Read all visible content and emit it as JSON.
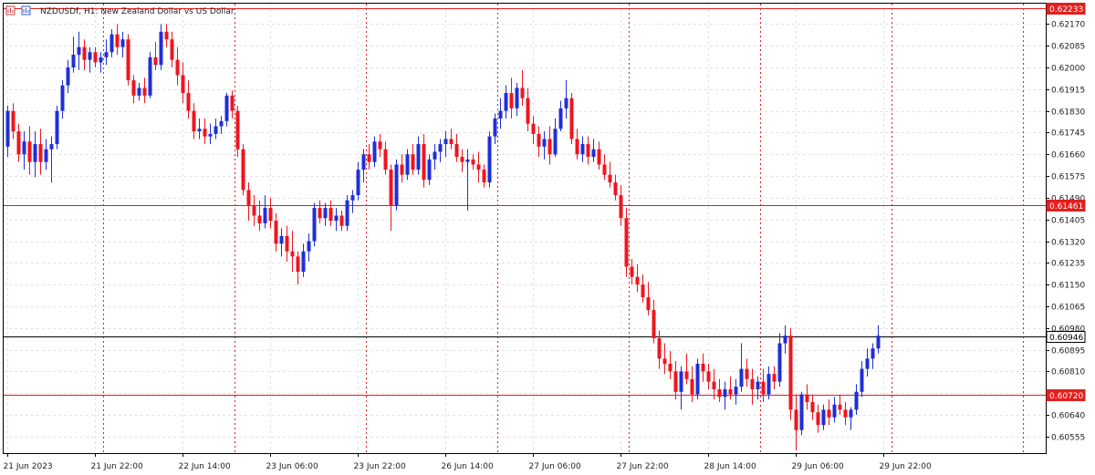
{
  "chart_data": {
    "type": "candlestick",
    "title": "NZDUSDf, H1:  New Zealand Dollar vs US Dollar",
    "ylim": [
      0.6049,
      0.6225
    ],
    "grid": true,
    "colors": {
      "up": "#1f2fd8",
      "down": "#f0141e",
      "level": "#e02020",
      "current": "#000000"
    },
    "y_ticks": [
      "0.62170",
      "0.62085",
      "0.62000",
      "0.61915",
      "0.61830",
      "0.61745",
      "0.61660",
      "0.61575",
      "0.61490",
      "0.61405",
      "0.61320",
      "0.61235",
      "0.61150",
      "0.61065",
      "0.60980",
      "0.60895",
      "0.60810",
      "0.60725",
      "0.60640",
      "0.60555"
    ],
    "x_ticks": [
      "21 Jun 2023",
      "21 Jun 22:00",
      "22 Jun 14:00",
      "23 Jun 06:00",
      "23 Jun 22:00",
      "26 Jun 14:00",
      "27 Jun 06:00",
      "27 Jun 22:00",
      "28 Jun 14:00",
      "29 Jun 06:00",
      "29 Jun 22:00"
    ],
    "x_tick_bars": [
      0,
      16,
      32,
      48,
      64,
      80,
      96,
      112,
      128,
      144,
      160
    ],
    "day_separator_bars": [
      18,
      42,
      66,
      90,
      114,
      138,
      162,
      186
    ],
    "levels": [
      {
        "label": "0.62233",
        "value": 0.62233,
        "kind": "level"
      },
      {
        "label": "0.61461",
        "value": 0.61461,
        "kind": "level"
      },
      {
        "label": "0.60946",
        "value": 0.60946,
        "kind": "current"
      },
      {
        "label": "0.60720",
        "value": 0.6072,
        "kind": "level"
      }
    ],
    "candles": [
      [
        0.6169,
        0.6185,
        0.6165,
        0.6183
      ],
      [
        0.6183,
        0.6186,
        0.6172,
        0.6175
      ],
      [
        0.6175,
        0.6178,
        0.6163,
        0.6166
      ],
      [
        0.6166,
        0.6175,
        0.616,
        0.6171
      ],
      [
        0.6171,
        0.6177,
        0.6158,
        0.6163
      ],
      [
        0.6163,
        0.6175,
        0.6157,
        0.617
      ],
      [
        0.617,
        0.6176,
        0.6158,
        0.6163
      ],
      [
        0.6163,
        0.6172,
        0.616,
        0.6168
      ],
      [
        0.6168,
        0.6173,
        0.6155,
        0.617
      ],
      [
        0.617,
        0.6185,
        0.6168,
        0.6183
      ],
      [
        0.6183,
        0.6195,
        0.618,
        0.6193
      ],
      [
        0.6193,
        0.6203,
        0.619,
        0.62
      ],
      [
        0.62,
        0.6212,
        0.6198,
        0.6205
      ],
      [
        0.6205,
        0.6214,
        0.6199,
        0.6208
      ],
      [
        0.6208,
        0.6211,
        0.6199,
        0.6203
      ],
      [
        0.6203,
        0.6208,
        0.6198,
        0.6206
      ],
      [
        0.6206,
        0.6208,
        0.62,
        0.6202
      ],
      [
        0.6202,
        0.6206,
        0.6198,
        0.6204
      ],
      [
        0.6204,
        0.6211,
        0.6201,
        0.6206
      ],
      [
        0.6206,
        0.6215,
        0.6204,
        0.6213
      ],
      [
        0.6213,
        0.6217,
        0.6205,
        0.6208
      ],
      [
        0.6208,
        0.6214,
        0.6204,
        0.6211
      ],
      [
        0.6211,
        0.6213,
        0.6193,
        0.6195
      ],
      [
        0.6195,
        0.6197,
        0.6186,
        0.6189
      ],
      [
        0.6189,
        0.6194,
        0.6187,
        0.6192
      ],
      [
        0.6192,
        0.6196,
        0.6186,
        0.6189
      ],
      [
        0.6189,
        0.6206,
        0.6188,
        0.6204
      ],
      [
        0.6204,
        0.621,
        0.6199,
        0.6201
      ],
      [
        0.6201,
        0.6217,
        0.6199,
        0.6214
      ],
      [
        0.6214,
        0.6217,
        0.6208,
        0.6211
      ],
      [
        0.6211,
        0.6214,
        0.62,
        0.6203
      ],
      [
        0.6203,
        0.6208,
        0.6193,
        0.6197
      ],
      [
        0.6197,
        0.6202,
        0.6186,
        0.619
      ],
      [
        0.619,
        0.6195,
        0.618,
        0.6183
      ],
      [
        0.6183,
        0.6186,
        0.6172,
        0.6175
      ],
      [
        0.6175,
        0.618,
        0.6172,
        0.6176
      ],
      [
        0.6176,
        0.618,
        0.617,
        0.6173
      ],
      [
        0.6173,
        0.6178,
        0.617,
        0.6174
      ],
      [
        0.6174,
        0.618,
        0.6172,
        0.6177
      ],
      [
        0.6177,
        0.6181,
        0.6174,
        0.6179
      ],
      [
        0.6179,
        0.619,
        0.6177,
        0.6189
      ],
      [
        0.6189,
        0.6191,
        0.618,
        0.6183
      ],
      [
        0.6183,
        0.6185,
        0.6165,
        0.6168
      ],
      [
        0.6168,
        0.617,
        0.615,
        0.6152
      ],
      [
        0.6152,
        0.6155,
        0.614,
        0.6146
      ],
      [
        0.6146,
        0.615,
        0.6138,
        0.6142
      ],
      [
        0.6142,
        0.6148,
        0.6136,
        0.6139
      ],
      [
        0.6139,
        0.615,
        0.6137,
        0.6145
      ],
      [
        0.6145,
        0.6149,
        0.6137,
        0.614
      ],
      [
        0.614,
        0.6143,
        0.6128,
        0.6131
      ],
      [
        0.6131,
        0.6137,
        0.6126,
        0.6134
      ],
      [
        0.6134,
        0.6138,
        0.6124,
        0.6128
      ],
      [
        0.6128,
        0.6136,
        0.612,
        0.6126
      ],
      [
        0.6126,
        0.6128,
        0.6115,
        0.612
      ],
      [
        0.612,
        0.6131,
        0.6118,
        0.6128
      ],
      [
        0.6128,
        0.6135,
        0.6124,
        0.6132
      ],
      [
        0.6132,
        0.6147,
        0.613,
        0.6145
      ],
      [
        0.6145,
        0.6148,
        0.6139,
        0.6141
      ],
      [
        0.6141,
        0.6147,
        0.6138,
        0.6145
      ],
      [
        0.6145,
        0.6148,
        0.6138,
        0.614
      ],
      [
        0.614,
        0.6145,
        0.6136,
        0.6142
      ],
      [
        0.6142,
        0.6144,
        0.6136,
        0.6138
      ],
      [
        0.6138,
        0.615,
        0.6136,
        0.6148
      ],
      [
        0.6148,
        0.6152,
        0.6143,
        0.615
      ],
      [
        0.615,
        0.6163,
        0.6148,
        0.616
      ],
      [
        0.616,
        0.6168,
        0.6155,
        0.6166
      ],
      [
        0.6166,
        0.617,
        0.616,
        0.6163
      ],
      [
        0.6163,
        0.6173,
        0.6161,
        0.6171
      ],
      [
        0.6171,
        0.6174,
        0.6165,
        0.6168
      ],
      [
        0.6168,
        0.6171,
        0.6158,
        0.616
      ],
      [
        0.616,
        0.6162,
        0.6136,
        0.6146
      ],
      [
        0.6146,
        0.6164,
        0.6144,
        0.6162
      ],
      [
        0.6162,
        0.6166,
        0.6155,
        0.6158
      ],
      [
        0.6158,
        0.6168,
        0.6156,
        0.6166
      ],
      [
        0.6166,
        0.617,
        0.6158,
        0.616
      ],
      [
        0.616,
        0.6173,
        0.6158,
        0.617
      ],
      [
        0.617,
        0.6174,
        0.6153,
        0.6156
      ],
      [
        0.6156,
        0.6166,
        0.6154,
        0.6164
      ],
      [
        0.6164,
        0.617,
        0.616,
        0.6167
      ],
      [
        0.6167,
        0.6172,
        0.6163,
        0.617
      ],
      [
        0.617,
        0.6175,
        0.6165,
        0.6172
      ],
      [
        0.6172,
        0.6176,
        0.6168,
        0.617
      ],
      [
        0.617,
        0.6174,
        0.6163,
        0.6165
      ],
      [
        0.6165,
        0.6168,
        0.6159,
        0.6163
      ],
      [
        0.6163,
        0.6168,
        0.6144,
        0.6164
      ],
      [
        0.6164,
        0.6166,
        0.616,
        0.6162
      ],
      [
        0.6162,
        0.6167,
        0.6155,
        0.616
      ],
      [
        0.616,
        0.6162,
        0.6153,
        0.6155
      ],
      [
        0.6155,
        0.6175,
        0.6153,
        0.6173
      ],
      [
        0.6173,
        0.6182,
        0.617,
        0.618
      ],
      [
        0.618,
        0.6188,
        0.6176,
        0.6183
      ],
      [
        0.6183,
        0.6193,
        0.618,
        0.619
      ],
      [
        0.619,
        0.6196,
        0.618,
        0.6184
      ],
      [
        0.6184,
        0.6194,
        0.6181,
        0.6192
      ],
      [
        0.6192,
        0.6199,
        0.6185,
        0.6188
      ],
      [
        0.6188,
        0.6192,
        0.6175,
        0.6178
      ],
      [
        0.6178,
        0.6181,
        0.617,
        0.6174
      ],
      [
        0.6174,
        0.6177,
        0.6165,
        0.6169
      ],
      [
        0.6169,
        0.6175,
        0.6164,
        0.6172
      ],
      [
        0.6172,
        0.6177,
        0.6162,
        0.6166
      ],
      [
        0.6166,
        0.618,
        0.6165,
        0.6176
      ],
      [
        0.6176,
        0.6187,
        0.6175,
        0.6184
      ],
      [
        0.6184,
        0.6195,
        0.618,
        0.6188
      ],
      [
        0.6188,
        0.619,
        0.617,
        0.6172
      ],
      [
        0.6172,
        0.6176,
        0.6164,
        0.6166
      ],
      [
        0.6166,
        0.6173,
        0.6163,
        0.617
      ],
      [
        0.617,
        0.6173,
        0.6162,
        0.6165
      ],
      [
        0.6165,
        0.6172,
        0.6163,
        0.6168
      ],
      [
        0.6168,
        0.6171,
        0.616,
        0.6162
      ],
      [
        0.6162,
        0.6166,
        0.6156,
        0.6158
      ],
      [
        0.6158,
        0.6163,
        0.6153,
        0.6155
      ],
      [
        0.6155,
        0.6158,
        0.6148,
        0.615
      ],
      [
        0.615,
        0.6154,
        0.6138,
        0.6141
      ],
      [
        0.6141,
        0.6145,
        0.6118,
        0.6122
      ],
      [
        0.6122,
        0.6125,
        0.6115,
        0.6118
      ],
      [
        0.6118,
        0.6123,
        0.6112,
        0.6115
      ],
      [
        0.6115,
        0.6119,
        0.6108,
        0.611
      ],
      [
        0.611,
        0.6116,
        0.6103,
        0.6105
      ],
      [
        0.6105,
        0.6109,
        0.6092,
        0.6094
      ],
      [
        0.6094,
        0.6097,
        0.6082,
        0.6086
      ],
      [
        0.6086,
        0.6092,
        0.608,
        0.6084
      ],
      [
        0.6084,
        0.6089,
        0.6078,
        0.6081
      ],
      [
        0.6081,
        0.6085,
        0.607,
        0.6073
      ],
      [
        0.6073,
        0.6083,
        0.6066,
        0.6081
      ],
      [
        0.6081,
        0.6088,
        0.6076,
        0.6078
      ],
      [
        0.6078,
        0.6083,
        0.6069,
        0.6072
      ],
      [
        0.6072,
        0.6086,
        0.607,
        0.6084
      ],
      [
        0.6084,
        0.6088,
        0.6077,
        0.6081
      ],
      [
        0.6081,
        0.6084,
        0.6074,
        0.6077
      ],
      [
        0.6077,
        0.6082,
        0.607,
        0.6074
      ],
      [
        0.6074,
        0.6078,
        0.6069,
        0.6071
      ],
      [
        0.6071,
        0.6077,
        0.6066,
        0.6074
      ],
      [
        0.6074,
        0.6079,
        0.607,
        0.6072
      ],
      [
        0.6072,
        0.6078,
        0.6068,
        0.6075
      ],
      [
        0.6075,
        0.6092,
        0.6073,
        0.6082
      ],
      [
        0.6082,
        0.6086,
        0.6075,
        0.6078
      ],
      [
        0.6078,
        0.6082,
        0.6068,
        0.6074
      ],
      [
        0.6074,
        0.6079,
        0.607,
        0.6077
      ],
      [
        0.6077,
        0.6082,
        0.6069,
        0.6072
      ],
      [
        0.6072,
        0.6083,
        0.607,
        0.608
      ],
      [
        0.608,
        0.6083,
        0.6074,
        0.6077
      ],
      [
        0.6077,
        0.6096,
        0.6075,
        0.6092
      ],
      [
        0.6092,
        0.6099,
        0.6088,
        0.6095
      ],
      [
        0.6095,
        0.6098,
        0.6062,
        0.6066
      ],
      [
        0.6066,
        0.6072,
        0.605,
        0.6058
      ],
      [
        0.6058,
        0.6073,
        0.6056,
        0.6072
      ],
      [
        0.6072,
        0.6076,
        0.6066,
        0.6069
      ],
      [
        0.6069,
        0.6072,
        0.6062,
        0.6065
      ],
      [
        0.6065,
        0.6068,
        0.6057,
        0.606
      ],
      [
        0.606,
        0.6068,
        0.6058,
        0.6066
      ],
      [
        0.6066,
        0.607,
        0.606,
        0.6063
      ],
      [
        0.6063,
        0.6071,
        0.6061,
        0.6068
      ],
      [
        0.6068,
        0.6072,
        0.6064,
        0.6066
      ],
      [
        0.6066,
        0.6069,
        0.606,
        0.6063
      ],
      [
        0.6063,
        0.6067,
        0.6058,
        0.6066
      ],
      [
        0.6066,
        0.6076,
        0.6064,
        0.6073
      ],
      [
        0.6073,
        0.6085,
        0.6071,
        0.6082
      ],
      [
        0.6082,
        0.609,
        0.6079,
        0.6086
      ],
      [
        0.6086,
        0.6092,
        0.6082,
        0.609
      ],
      [
        0.609,
        0.6099,
        0.6088,
        0.6095
      ]
    ]
  }
}
